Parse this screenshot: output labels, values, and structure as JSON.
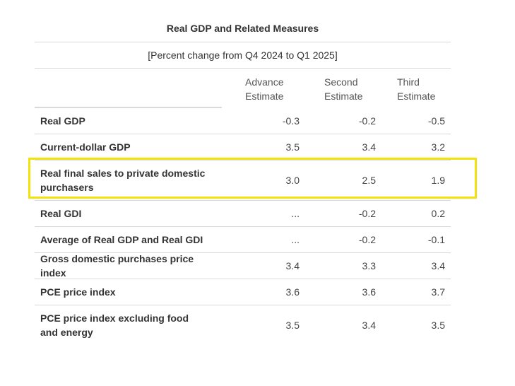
{
  "table": {
    "title": "Real GDP and Related Measures",
    "subtitle": "[Percent change from Q4 2024 to Q1 2025]",
    "columns": [
      {
        "line1": "Advance",
        "line2": "Estimate"
      },
      {
        "line1": "Second",
        "line2": "Estimate"
      },
      {
        "line1": "Third",
        "line2": "Estimate"
      }
    ],
    "rows": [
      {
        "label": "Real GDP",
        "values": [
          "-0.3",
          "-0.2",
          "-0.5"
        ]
      },
      {
        "label": "Current-dollar GDP",
        "values": [
          "3.5",
          "3.4",
          "3.2"
        ]
      },
      {
        "label": "Real final sales to private domestic purchasers",
        "values": [
          "3.0",
          "2.5",
          "1.9"
        ]
      },
      {
        "label": "Real GDI",
        "values": [
          "...",
          "-0.2",
          "0.2"
        ]
      },
      {
        "label": "Average of Real GDP and Real GDI",
        "values": [
          "...",
          "-0.2",
          "-0.1"
        ]
      },
      {
        "label": "Gross domestic purchases price index",
        "values": [
          "3.4",
          "3.3",
          "3.4"
        ]
      },
      {
        "label": "PCE price index",
        "values": [
          "3.6",
          "3.6",
          "3.7"
        ]
      },
      {
        "label": "PCE price index excluding food and energy",
        "values": [
          "3.5",
          "3.4",
          "3.5"
        ]
      }
    ]
  },
  "highlight": {
    "color": "#f2e30c",
    "row_index": 2
  }
}
